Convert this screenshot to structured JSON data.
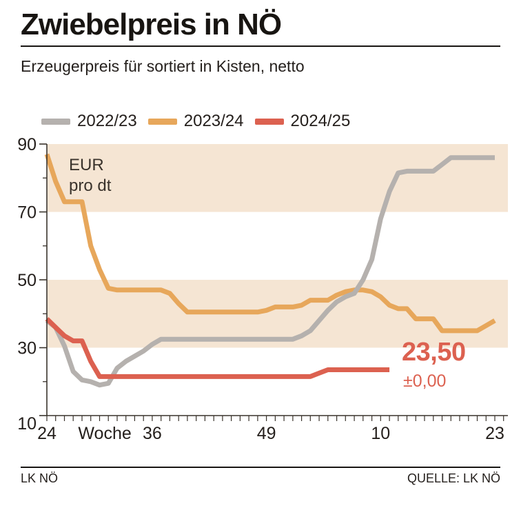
{
  "header": {
    "title": "Zwiebelpreis in NÖ",
    "subtitle": "Erzeugerpreis für sortiert in Kisten, netto"
  },
  "footer": {
    "left": "LK NÖ",
    "right": "QUELLE: LK NÖ"
  },
  "chart_data": {
    "type": "line",
    "unit_label": [
      "EUR",
      "pro dt"
    ],
    "band_color": "#f5e5d3",
    "axis_color": "#38322b",
    "bands": [
      [
        30,
        50
      ],
      [
        70,
        90
      ]
    ],
    "y_axis": {
      "min": 10,
      "max": 90,
      "major_ticks": [
        10,
        30,
        50,
        70,
        90
      ],
      "minor_ticks": [
        20,
        40,
        60,
        80
      ]
    },
    "x_axis": {
      "title": "Woche",
      "title_week_index": 6.6,
      "weeks": [
        24,
        25,
        26,
        27,
        28,
        29,
        30,
        31,
        32,
        33,
        34,
        35,
        36,
        37,
        38,
        39,
        40,
        41,
        42,
        43,
        44,
        45,
        46,
        47,
        48,
        49,
        50,
        51,
        52,
        1,
        2,
        3,
        4,
        5,
        6,
        7,
        8,
        9,
        10,
        11,
        12,
        13,
        14,
        15,
        16,
        17,
        18,
        19,
        20,
        21,
        22,
        23
      ],
      "tick_labels": [
        {
          "text": "24",
          "week_index": 0
        },
        {
          "text": "36",
          "week_index": 12
        },
        {
          "text": "49",
          "week_index": 25
        },
        {
          "text": "10",
          "week_index": 38
        },
        {
          "text": "23",
          "week_index": 51
        }
      ]
    },
    "series": [
      {
        "name": "2022/23",
        "color": "#b5b1ae",
        "values": [
          38,
          36,
          30.5,
          23,
          20.5,
          20,
          19,
          19.5,
          24,
          26,
          27.5,
          29,
          31,
          32.5,
          32.5,
          32.5,
          32.5,
          32.5,
          32.5,
          32.5,
          32.5,
          32.5,
          32.5,
          32.5,
          32.5,
          32.5,
          32.5,
          32.5,
          32.5,
          33.5,
          35,
          38,
          41,
          43.5,
          45,
          46,
          50,
          56,
          68,
          76,
          81.5,
          82,
          82,
          82,
          82,
          84,
          86,
          86,
          86,
          86,
          86,
          86
        ]
      },
      {
        "name": "2023/24",
        "color": "#e7a75b",
        "values": [
          87,
          79,
          73,
          73,
          73,
          60,
          53,
          47.5,
          47,
          47,
          47,
          47,
          47,
          47,
          46,
          43,
          40.5,
          40.5,
          40.5,
          40.5,
          40.5,
          40.5,
          40.5,
          40.5,
          40.5,
          41,
          42,
          42,
          42,
          42.5,
          44,
          44,
          44,
          45.5,
          46.5,
          47,
          47,
          46.5,
          45,
          42.5,
          41.5,
          41.5,
          38.5,
          38.5,
          38.5,
          35,
          35,
          35,
          35,
          35,
          36.5,
          38
        ]
      },
      {
        "name": "2024/25",
        "color": "#dc6150",
        "values": [
          38.5,
          36,
          33.5,
          32,
          32,
          26,
          21.5,
          21.5,
          21.5,
          21.5,
          21.5,
          21.5,
          21.5,
          21.5,
          21.5,
          21.5,
          21.5,
          21.5,
          21.5,
          21.5,
          21.5,
          21.5,
          21.5,
          21.5,
          21.5,
          21.5,
          21.5,
          21.5,
          21.5,
          21.5,
          21.5,
          22.5,
          23.5,
          23.5,
          23.5,
          23.5,
          23.5,
          23.5,
          23.5,
          23.5,
          null,
          null,
          null,
          null,
          null,
          null,
          null,
          null,
          null,
          null,
          null,
          null
        ]
      }
    ],
    "current_value": {
      "text": "23,50",
      "delta": "±0,00",
      "color": "#dc6150"
    }
  }
}
